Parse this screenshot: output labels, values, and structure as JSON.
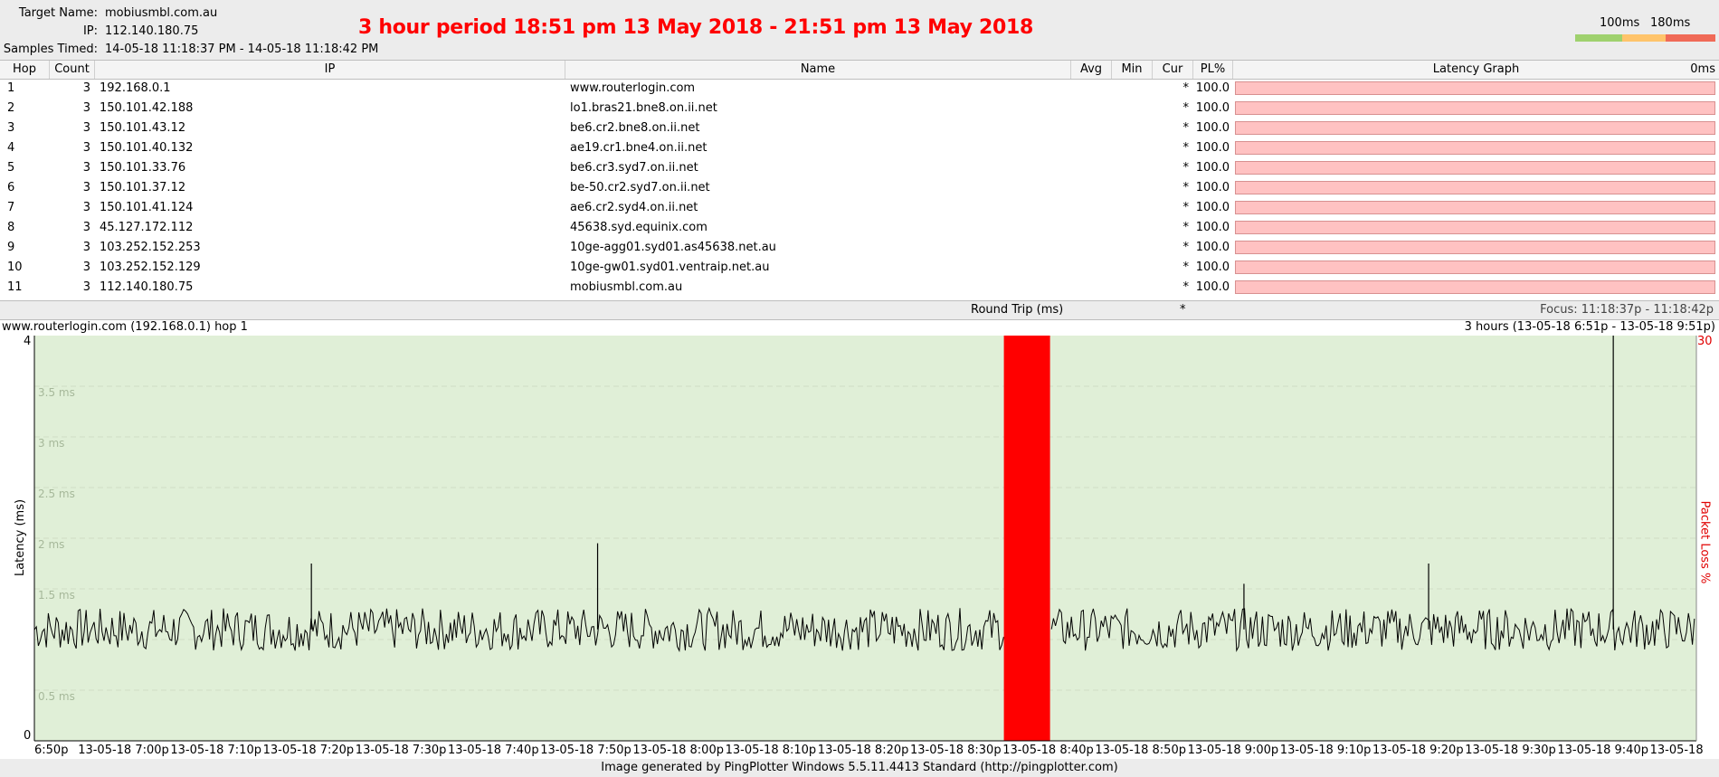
{
  "header": {
    "target_label": "Target Name:",
    "target_value": "mobiusmbl.com.au",
    "ip_label": "IP:",
    "ip_value": "112.140.180.75",
    "samples_label": "Samples Timed:",
    "samples_value": "14-05-18 11:18:37 PM - 14-05-18 11:18:42 PM",
    "banner": "3 hour period 18:51 pm 13 May 2018 - 21:51 pm 13 May 2018",
    "legend": {
      "label_100": "100ms",
      "label_180": "180ms",
      "colors": [
        "#9fd16e",
        "#ffc46b",
        "#f06a57"
      ]
    }
  },
  "table": {
    "columns": [
      "Hop",
      "Count",
      "IP",
      "Name",
      "Avg",
      "Min",
      "Cur",
      "PL%",
      "Latency Graph"
    ],
    "latency_graph_scale": "0ms",
    "rows": [
      {
        "hop": "1",
        "count": "3",
        "ip": "192.168.0.1",
        "name": "www.routerlogin.com",
        "avg": "",
        "min": "",
        "cur": "*",
        "pl": "100.0"
      },
      {
        "hop": "2",
        "count": "3",
        "ip": "150.101.42.188",
        "name": "lo1.bras21.bne8.on.ii.net",
        "avg": "",
        "min": "",
        "cur": "*",
        "pl": "100.0"
      },
      {
        "hop": "3",
        "count": "3",
        "ip": "150.101.43.12",
        "name": "be6.cr2.bne8.on.ii.net",
        "avg": "",
        "min": "",
        "cur": "*",
        "pl": "100.0"
      },
      {
        "hop": "4",
        "count": "3",
        "ip": "150.101.40.132",
        "name": "ae19.cr1.bne4.on.ii.net",
        "avg": "",
        "min": "",
        "cur": "*",
        "pl": "100.0"
      },
      {
        "hop": "5",
        "count": "3",
        "ip": "150.101.33.76",
        "name": "be6.cr3.syd7.on.ii.net",
        "avg": "",
        "min": "",
        "cur": "*",
        "pl": "100.0"
      },
      {
        "hop": "6",
        "count": "3",
        "ip": "150.101.37.12",
        "name": "be-50.cr2.syd7.on.ii.net",
        "avg": "",
        "min": "",
        "cur": "*",
        "pl": "100.0"
      },
      {
        "hop": "7",
        "count": "3",
        "ip": "150.101.41.124",
        "name": "ae6.cr2.syd4.on.ii.net",
        "avg": "",
        "min": "",
        "cur": "*",
        "pl": "100.0"
      },
      {
        "hop": "8",
        "count": "3",
        "ip": "45.127.172.112",
        "name": "45638.syd.equinix.com",
        "avg": "",
        "min": "",
        "cur": "*",
        "pl": "100.0"
      },
      {
        "hop": "9",
        "count": "3",
        "ip": "103.252.152.253",
        "name": "10ge-agg01.syd01.as45638.net.au",
        "avg": "",
        "min": "",
        "cur": "*",
        "pl": "100.0"
      },
      {
        "hop": "10",
        "count": "3",
        "ip": "103.252.152.129",
        "name": "10ge-gw01.syd01.ventraip.net.au",
        "avg": "",
        "min": "",
        "cur": "*",
        "pl": "100.0"
      },
      {
        "hop": "11",
        "count": "3",
        "ip": "112.140.180.75",
        "name": "mobiusmbl.com.au",
        "avg": "",
        "min": "",
        "cur": "*",
        "pl": "100.0"
      }
    ],
    "round_trip_label": "Round Trip (ms)",
    "round_trip_cur": "*",
    "focus": "Focus: 11:18:37p - 11:18:42p"
  },
  "graph": {
    "title_left": "www.routerlogin.com (192.168.0.1) hop 1",
    "title_right": "3 hours (13-05-18 6:51p - 13-05-18 9:51p)",
    "ylabel": "Latency (ms)",
    "y2label": "Packet Loss %",
    "y_top": "4",
    "y_bottom": "0",
    "y2_top": "30",
    "ms_labels": [
      "3.5 ms",
      "3 ms",
      "2.5 ms",
      "2 ms",
      "1.5 ms",
      "0.5 ms"
    ],
    "x_labels": [
      "6:50p",
      "13-05-18 7:00p",
      "13-05-18 7:10p",
      "13-05-18 7:20p",
      "13-05-18 7:30p",
      "13-05-18 7:40p",
      "13-05-18 7:50p",
      "13-05-18 8:00p",
      "13-05-18 8:10p",
      "13-05-18 8:20p",
      "13-05-18 8:30p",
      "13-05-18 8:40p",
      "13-05-18 8:50p",
      "13-05-18 9:00p",
      "13-05-18 9:10p",
      "13-05-18 9:20p",
      "13-05-18 9:30p",
      "13-05-18 9:40p",
      "13-05-18"
    ],
    "chart_data": {
      "type": "line",
      "ylabel": "Latency (ms)",
      "ylim": [
        0,
        4
      ],
      "y2label": "Packet Loss %",
      "y2lim": [
        0,
        30
      ],
      "baseline_ms": 1.1,
      "spikes": [
        {
          "time": "7:21p",
          "ms": 1.75
        },
        {
          "time": "7:52p",
          "ms": 1.95
        },
        {
          "time": "9:02p",
          "ms": 1.55
        },
        {
          "time": "9:22p",
          "ms": 1.75
        },
        {
          "time": "9:42p",
          "ms": 4.0
        }
      ],
      "packet_loss_band": {
        "start": "8:36p",
        "end": "8:41p",
        "loss_pct": 30
      },
      "colors": {
        "line": "#000000",
        "background": "#e0efd7",
        "loss": "#ff0000"
      }
    }
  },
  "footer": "Image generated by PingPlotter Windows 5.5.11.4413 Standard (http://pingplotter.com)"
}
